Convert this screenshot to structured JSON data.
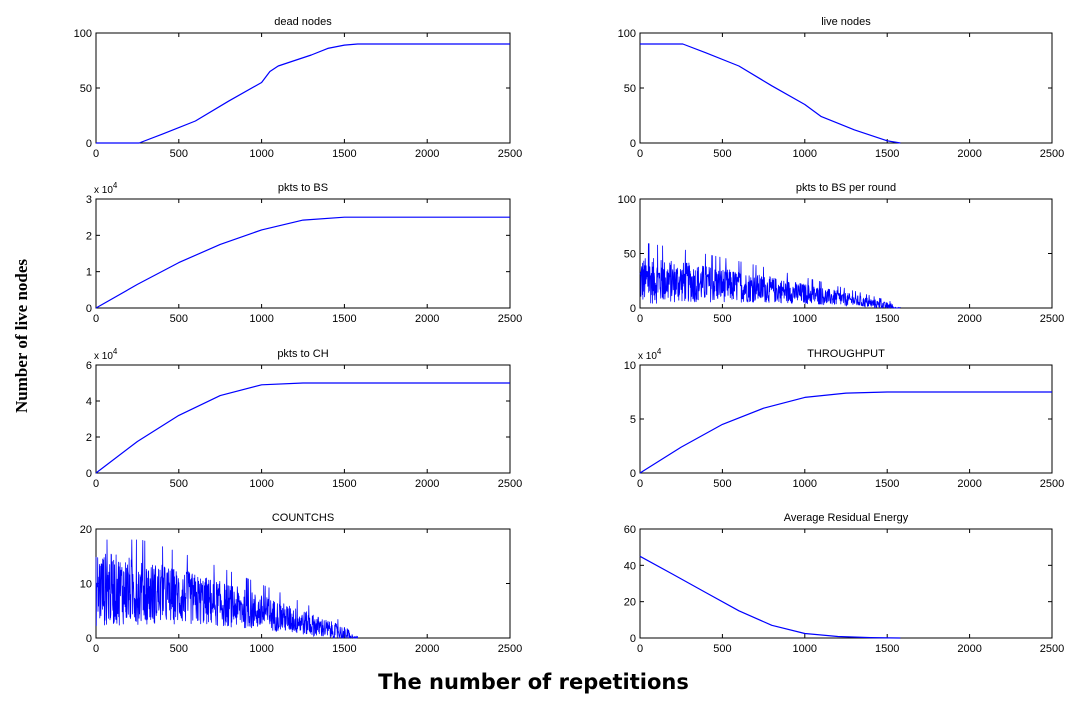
{
  "figure": {
    "ylabel": "Number of live nodes",
    "xlabel": "The number of repetitions"
  },
  "chart_data": [
    {
      "type": "line",
      "title": "dead nodes",
      "xlim": [
        0,
        2500
      ],
      "ylim": [
        0,
        100
      ],
      "xticks": [
        0,
        500,
        1000,
        1500,
        2000,
        2500
      ],
      "yticks": [
        0,
        50,
        100
      ],
      "exponent": "",
      "series": [
        {
          "x": [
            0,
            260,
            400,
            600,
            800,
            1000,
            1050,
            1100,
            1200,
            1300,
            1400,
            1500,
            1580,
            2500
          ],
          "y": [
            0,
            0,
            8,
            20,
            38,
            55,
            65,
            70,
            75,
            80,
            86,
            89,
            90,
            90
          ]
        }
      ],
      "color": "#0000ff"
    },
    {
      "type": "line",
      "title": "live nodes",
      "xlim": [
        0,
        2500
      ],
      "ylim": [
        0,
        100
      ],
      "xticks": [
        0,
        500,
        1000,
        1500,
        2000,
        2500
      ],
      "yticks": [
        0,
        50,
        100
      ],
      "exponent": "",
      "series": [
        {
          "x": [
            0,
            260,
            400,
            600,
            800,
            1000,
            1100,
            1200,
            1300,
            1400,
            1500,
            1580
          ],
          "y": [
            90,
            90,
            82,
            70,
            52,
            35,
            24,
            18,
            12,
            7,
            2,
            0
          ]
        }
      ],
      "color": "#0000ff"
    },
    {
      "type": "line",
      "title": "pkts to BS",
      "xlim": [
        0,
        2500
      ],
      "ylim": [
        0,
        3
      ],
      "xticks": [
        0,
        500,
        1000,
        1500,
        2000,
        2500
      ],
      "yticks": [
        0,
        1,
        2,
        3
      ],
      "exponent": "x 10",
      "exponent_power": "4",
      "series": [
        {
          "x": [
            0,
            250,
            500,
            750,
            1000,
            1250,
            1500,
            2500
          ],
          "y": [
            0,
            0.65,
            1.25,
            1.75,
            2.15,
            2.42,
            2.5,
            2.5
          ]
        }
      ],
      "color": "#0000ff"
    },
    {
      "type": "line",
      "title": "pkts to BS per round",
      "xlim": [
        0,
        2500
      ],
      "ylim": [
        0,
        100
      ],
      "xticks": [
        0,
        500,
        1000,
        1500,
        2000,
        2500
      ],
      "yticks": [
        0,
        50,
        100
      ],
      "exponent": "",
      "series": [
        {
          "noisy": true,
          "x_end": 1580,
          "mean_start": 25,
          "mean_end": 0,
          "amp_start": 22,
          "amp_end": 2,
          "spike_max": 60
        }
      ],
      "color": "#0000ff"
    },
    {
      "type": "line",
      "title": "pkts to CH",
      "xlim": [
        0,
        2500
      ],
      "ylim": [
        0,
        6
      ],
      "xticks": [
        0,
        500,
        1000,
        1500,
        2000,
        2500
      ],
      "yticks": [
        0,
        2,
        4,
        6
      ],
      "exponent": "x 10",
      "exponent_power": "4",
      "series": [
        {
          "x": [
            0,
            250,
            500,
            750,
            1000,
            1250,
            1500,
            2500
          ],
          "y": [
            0,
            1.75,
            3.2,
            4.3,
            4.9,
            5.0,
            5.0,
            5.0
          ]
        }
      ],
      "color": "#0000ff"
    },
    {
      "type": "line",
      "title": "THROUGHPUT",
      "xlim": [
        0,
        2500
      ],
      "ylim": [
        0,
        10
      ],
      "xticks": [
        0,
        500,
        1000,
        1500,
        2000,
        2500
      ],
      "yticks": [
        0,
        5,
        10
      ],
      "exponent": "x 10",
      "exponent_power": "4",
      "series": [
        {
          "x": [
            0,
            250,
            500,
            750,
            1000,
            1250,
            1500,
            2500
          ],
          "y": [
            0,
            2.4,
            4.5,
            6.0,
            7.0,
            7.4,
            7.5,
            7.5
          ]
        }
      ],
      "color": "#0000ff"
    },
    {
      "type": "line",
      "title": "COUNTCHS",
      "xlim": [
        0,
        2500
      ],
      "ylim": [
        0,
        20
      ],
      "xticks": [
        0,
        500,
        1000,
        1500,
        2000,
        2500
      ],
      "yticks": [
        0,
        10,
        20
      ],
      "exponent": "",
      "series": [
        {
          "noisy": true,
          "x_end": 1580,
          "mean_start": 9,
          "mean_end": 0,
          "amp_start": 7,
          "amp_end": 1,
          "spike_max": 18
        }
      ],
      "color": "#0000ff"
    },
    {
      "type": "line",
      "title": "Average Residual Energy",
      "xlim": [
        0,
        2500
      ],
      "ylim": [
        0,
        60
      ],
      "xticks": [
        0,
        500,
        1000,
        1500,
        2000,
        2500
      ],
      "yticks": [
        0,
        20,
        40,
        60
      ],
      "exponent": "",
      "series": [
        {
          "x": [
            0,
            200,
            400,
            600,
            800,
            1000,
            1200,
            1400,
            1580
          ],
          "y": [
            45,
            35,
            25,
            15,
            7,
            2.5,
            0.8,
            0.2,
            0
          ]
        }
      ],
      "color": "#0000ff"
    }
  ]
}
